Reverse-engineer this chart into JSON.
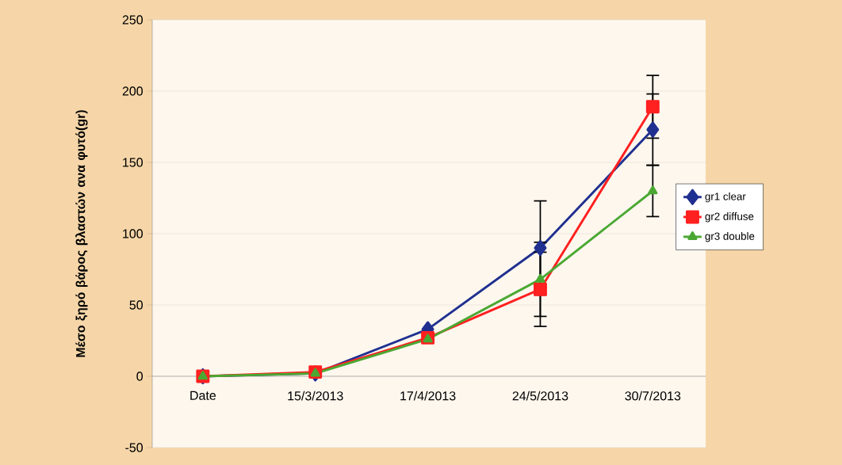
{
  "chart_data": {
    "type": "line",
    "ylabel": "Μέσο ξηρό βάρος βλαστών ανα φυτό(gr)",
    "categories": [
      "Date",
      "15/3/2013",
      "17/4/2013",
      "24/5/2013",
      "30/7/2013"
    ],
    "series": [
      {
        "name": "gr1 clear",
        "color": "#203090",
        "marker": "diamond",
        "values": [
          0,
          2,
          33,
          90,
          173
        ],
        "errors": [
          null,
          null,
          null,
          33,
          25
        ]
      },
      {
        "name": "gr2 diffuse",
        "color": "#ff2020",
        "marker": "square",
        "values": [
          0,
          3,
          27,
          61,
          189
        ],
        "errors": [
          null,
          null,
          null,
          26,
          22
        ]
      },
      {
        "name": "gr3 double",
        "color": "#4aa832",
        "marker": "triangle",
        "values": [
          0,
          2,
          26,
          68,
          130
        ],
        "errors": [
          null,
          null,
          null,
          26,
          18
        ]
      }
    ],
    "ylim": [
      -50,
      250
    ],
    "yticks": [
      -50,
      0,
      50,
      100,
      150,
      200,
      250
    ],
    "grid": "y",
    "legend": "right",
    "line_style": "solid"
  }
}
